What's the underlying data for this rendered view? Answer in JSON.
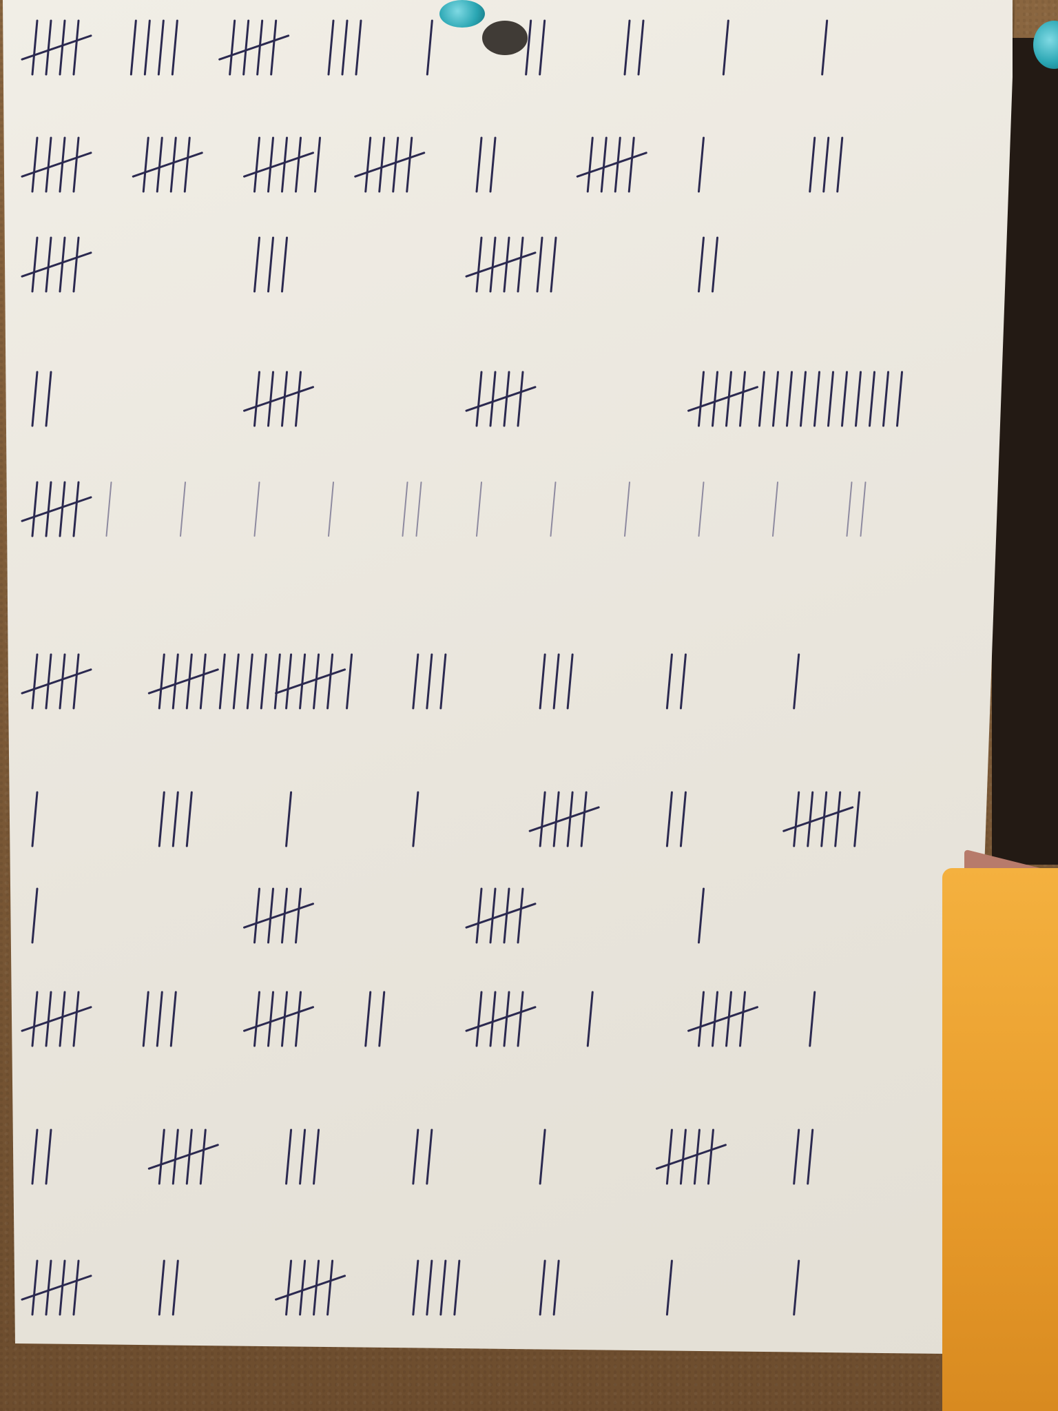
{
  "image": {
    "subject": "tally-marks-sheet",
    "colors": {
      "paper": "#ece8df",
      "ink": "#2b2950",
      "pin": "#2aa6b3",
      "envelope": "#eea233",
      "cork": "#7a5a3a"
    }
  },
  "tally_rows": [
    [
      5,
      4,
      5,
      3,
      1,
      2,
      2,
      1,
      1
    ],
    [
      5,
      5,
      6,
      5,
      2,
      5,
      1,
      3
    ],
    [
      5,
      3,
      7,
      2
    ],
    [
      2,
      5,
      5,
      16
    ],
    [
      5,
      1,
      1,
      1,
      1,
      2,
      1,
      1,
      1,
      1,
      1,
      2
    ],
    [
      5,
      10,
      6,
      3,
      3,
      2,
      1
    ],
    [
      1,
      3,
      1,
      1,
      5,
      2,
      6
    ],
    [
      1,
      5,
      5,
      1
    ],
    [
      5,
      3,
      5,
      2,
      5,
      1,
      5,
      1
    ],
    [
      2,
      5,
      3,
      2,
      1,
      5,
      2
    ],
    [
      5,
      2,
      5,
      4,
      2,
      1,
      1
    ]
  ]
}
